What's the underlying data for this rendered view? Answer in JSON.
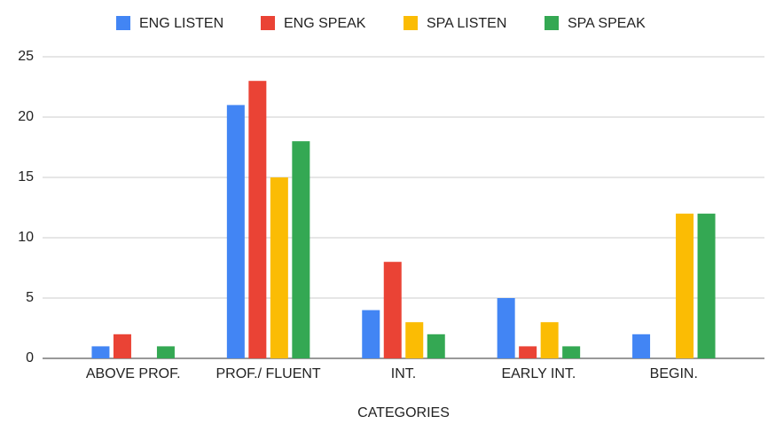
{
  "chart_data": {
    "type": "bar",
    "x_label": "CATEGORIES",
    "categories": [
      "ABOVE PROF.",
      "PROF./ FLUENT",
      "INT.",
      "EARLY INT.",
      "BEGIN."
    ],
    "series": [
      {
        "name": "ENG LISTEN",
        "color": "#4285f4",
        "values": [
          1,
          21,
          4,
          5,
          2
        ]
      },
      {
        "name": "ENG SPEAK",
        "color": "#ea4335",
        "values": [
          2,
          23,
          8,
          1,
          0
        ]
      },
      {
        "name": "SPA LISTEN",
        "color": "#fbbc04",
        "values": [
          0,
          15,
          3,
          3,
          12
        ]
      },
      {
        "name": "SPA SPEAK",
        "color": "#34a853",
        "values": [
          1,
          18,
          2,
          1,
          12
        ]
      }
    ],
    "ylim": [
      0,
      25
    ],
    "yticks": [
      0,
      5,
      10,
      15,
      20,
      25
    ],
    "grid": true,
    "legend": "top"
  }
}
